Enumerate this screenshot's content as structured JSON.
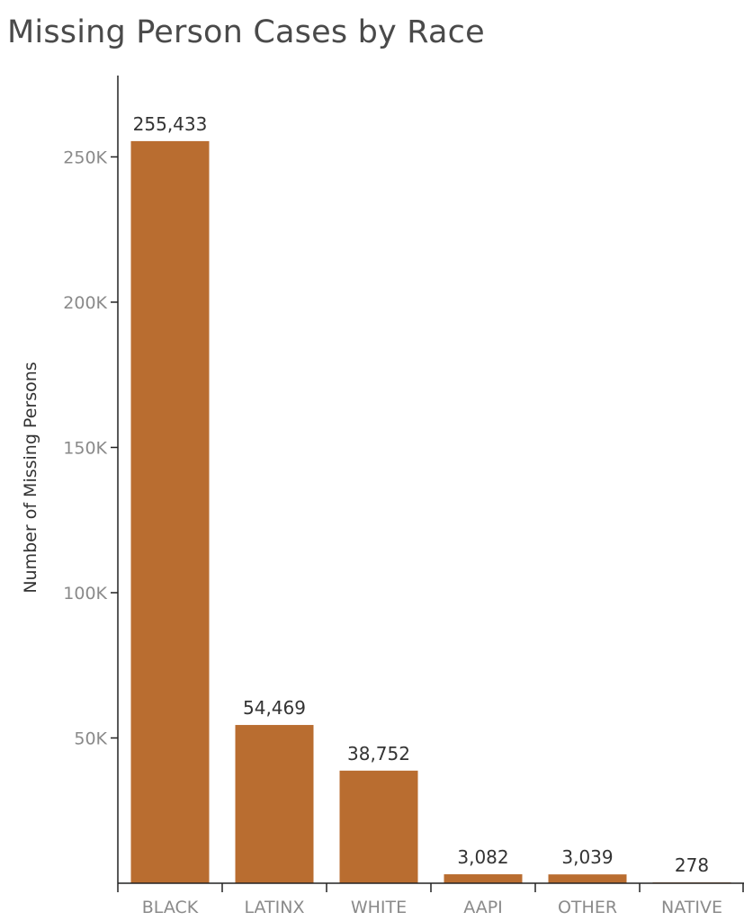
{
  "chart_data": {
    "type": "bar",
    "title": "Missing Person Cases by Race",
    "xlabel": "",
    "ylabel": "Number of Missing Persons",
    "categories": [
      "BLACK",
      "LATINX",
      "WHITE",
      "AAPI",
      "OTHER",
      "NATIVE"
    ],
    "values": [
      255433,
      54469,
      38752,
      3082,
      3039,
      278
    ],
    "data_labels": [
      "255,433",
      "54,469",
      "38,752",
      "3,082",
      "3,039",
      "278"
    ],
    "ylim": [
      0,
      278000
    ],
    "yticks": [
      50000,
      100000,
      150000,
      200000,
      250000
    ],
    "ytick_labels": [
      "50K",
      "100K",
      "150K",
      "200K",
      "250K"
    ],
    "grid": false,
    "legend": "none",
    "colors": {
      "bar": "#b96d30",
      "axis": "#222222",
      "tick_text": "#8a8a8a",
      "title_text": "#4a4a4a"
    }
  }
}
